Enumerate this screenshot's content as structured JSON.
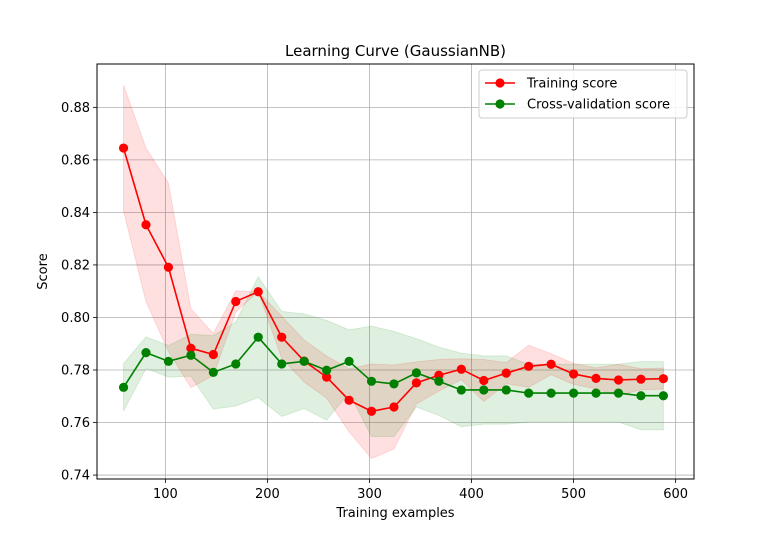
{
  "chart_data": {
    "type": "line",
    "title": "Learning Curve (GaussianNB)",
    "xlabel": "Training examples",
    "ylabel": "Score",
    "xlim": [
      33,
      618
    ],
    "ylim": [
      0.7385,
      0.8965
    ],
    "x_ticks": [
      100,
      200,
      300,
      400,
      500,
      600
    ],
    "x_tick_labels": [
      "100",
      "200",
      "300",
      "400",
      "500",
      "600"
    ],
    "y_ticks": [
      0.74,
      0.76,
      0.78,
      0.8,
      0.82,
      0.84,
      0.86,
      0.88
    ],
    "y_tick_labels": [
      "0.74",
      "0.76",
      "0.78",
      "0.80",
      "0.82",
      "0.84",
      "0.86",
      "0.88"
    ],
    "grid": true,
    "legend_position": "top-right",
    "x": [
      59,
      81,
      103,
      125,
      147,
      169,
      191,
      214,
      236,
      258,
      280,
      302,
      324,
      346,
      368,
      390,
      412,
      434,
      456,
      478,
      500,
      522,
      544,
      566,
      588
    ],
    "series": [
      {
        "name": "Training score",
        "color": "#ff0000",
        "values": [
          0.8645,
          0.8353,
          0.8191,
          0.7883,
          0.7859,
          0.8061,
          0.8098,
          0.7925,
          0.7834,
          0.7773,
          0.7685,
          0.7643,
          0.7659,
          0.7751,
          0.778,
          0.7803,
          0.776,
          0.7788,
          0.7814,
          0.7822,
          0.7785,
          0.7768,
          0.7762,
          0.7765,
          0.7767
        ],
        "upper": [
          0.8885,
          0.8645,
          0.8511,
          0.8033,
          0.7939,
          0.8101,
          0.8098,
          0.8005,
          0.7914,
          0.7853,
          0.7805,
          0.7823,
          0.7819,
          0.7831,
          0.784,
          0.7843,
          0.784,
          0.7828,
          0.7894,
          0.7862,
          0.7825,
          0.7808,
          0.7822,
          0.7805,
          0.7807
        ],
        "lower": [
          0.8405,
          0.8061,
          0.7871,
          0.7733,
          0.7779,
          0.8021,
          0.8098,
          0.7845,
          0.7754,
          0.7693,
          0.7565,
          0.7463,
          0.7499,
          0.7671,
          0.772,
          0.7763,
          0.768,
          0.7748,
          0.7734,
          0.7782,
          0.7745,
          0.7728,
          0.7702,
          0.7725,
          0.7727
        ],
        "band_color": "#ff0000"
      },
      {
        "name": "Cross-validation score",
        "color": "#008000",
        "values": [
          0.7734,
          0.7866,
          0.7833,
          0.7856,
          0.7791,
          0.7823,
          0.7925,
          0.7823,
          0.7833,
          0.7799,
          0.7833,
          0.7757,
          0.7747,
          0.7789,
          0.7757,
          0.7724,
          0.7724,
          0.7724,
          0.7712,
          0.7712,
          0.7712,
          0.7712,
          0.7712,
          0.7702,
          0.7702
        ],
        "upper": [
          0.7824,
          0.7926,
          0.7893,
          0.7936,
          0.7931,
          0.7983,
          0.8155,
          0.8023,
          0.8013,
          0.7989,
          0.7953,
          0.7967,
          0.7947,
          0.7919,
          0.7887,
          0.7864,
          0.7854,
          0.7854,
          0.7822,
          0.7822,
          0.7822,
          0.7822,
          0.7822,
          0.7832,
          0.7832
        ],
        "lower": [
          0.7644,
          0.7806,
          0.7773,
          0.7776,
          0.7651,
          0.7663,
          0.7695,
          0.7623,
          0.7653,
          0.7609,
          0.7713,
          0.7547,
          0.7547,
          0.7659,
          0.7627,
          0.7584,
          0.7594,
          0.7594,
          0.7602,
          0.7602,
          0.7602,
          0.7602,
          0.7602,
          0.7572,
          0.7572
        ],
        "band_color": "#008000"
      }
    ]
  }
}
